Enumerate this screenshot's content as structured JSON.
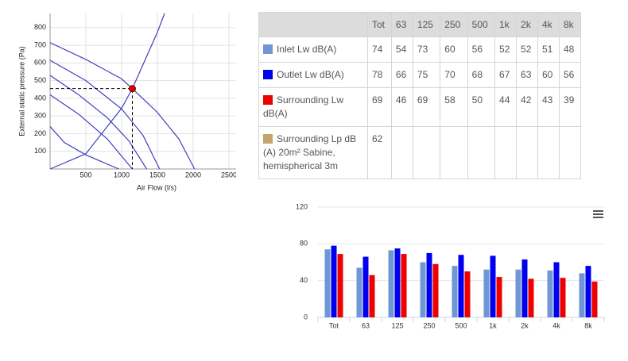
{
  "chart_data": [
    {
      "type": "line",
      "x_label": "Air Flow (l/s)",
      "y_label": "External static pressure (Pa)",
      "xlim": [
        0,
        2600
      ],
      "ylim": [
        0,
        880
      ],
      "xticks": [
        500,
        1000,
        1500,
        2000,
        2500
      ],
      "yticks": [
        100,
        200,
        300,
        400,
        500,
        600,
        700,
        800
      ],
      "grid": true,
      "series": [
        {
          "color": "#3f3fbf",
          "x": [
            0,
            500,
            1000,
            1150,
            1500,
            1800,
            2020
          ],
          "values": [
            715,
            620,
            510,
            455,
            320,
            170,
            0
          ]
        },
        {
          "color": "#3f3fbf",
          "x": [
            0,
            500,
            1000,
            1300,
            1530
          ],
          "values": [
            615,
            500,
            340,
            190,
            0
          ]
        },
        {
          "color": "#3f3fbf",
          "x": [
            0,
            400,
            800,
            1100,
            1350
          ],
          "values": [
            530,
            420,
            290,
            160,
            0
          ]
        },
        {
          "color": "#3f3fbf",
          "x": [
            0,
            400,
            800,
            1150
          ],
          "values": [
            420,
            310,
            170,
            0
          ]
        },
        {
          "color": "#3f3fbf",
          "x": [
            0,
            200,
            500,
            960
          ],
          "values": [
            240,
            150,
            80,
            0
          ]
        },
        {
          "color": "#3f3fbf",
          "x": [
            0,
            500,
            1000,
            1150,
            1500,
            1600
          ],
          "values": [
            0,
            86,
            344,
            455,
            774,
            880
          ]
        }
      ],
      "point": {
        "x": 1150,
        "y": 455,
        "color": "#cc0000"
      }
    },
    {
      "type": "bar",
      "categories": [
        "Tot",
        "63",
        "125",
        "250",
        "500",
        "1k",
        "2k",
        "4k",
        "8k"
      ],
      "ylim": [
        0,
        120
      ],
      "yticks": [
        0,
        40,
        80,
        120
      ],
      "grid": true,
      "series": [
        {
          "color": "#6f97d6",
          "values": [
            74,
            54,
            73,
            60,
            56,
            52,
            52,
            51,
            48
          ]
        },
        {
          "color": "#0000ee",
          "values": [
            78,
            66,
            75,
            70,
            68,
            67,
            63,
            60,
            56
          ]
        },
        {
          "color": "#ee0000",
          "values": [
            69,
            46,
            69,
            58,
            50,
            44,
            42,
            43,
            39
          ]
        }
      ]
    }
  ],
  "table": {
    "columns": [
      "Tot",
      "63",
      "125",
      "250",
      "500",
      "1k",
      "2k",
      "4k",
      "8k"
    ],
    "rows": [
      {
        "label": "Inlet Lw dB(A)",
        "color": "#6f97d6",
        "values": [
          74,
          54,
          73,
          60,
          56,
          52,
          52,
          51,
          48
        ]
      },
      {
        "label": "Outlet Lw dB(A)",
        "color": "#0000ee",
        "values": [
          78,
          66,
          75,
          70,
          68,
          67,
          63,
          60,
          56
        ]
      },
      {
        "label": "Surrounding Lw dB(A)",
        "color": "#ee0000",
        "values": [
          69,
          46,
          69,
          58,
          50,
          44,
          42,
          43,
          39
        ]
      },
      {
        "label": "Surrounding Lp dB (A) 20m² Sabine, hemispherical 3m",
        "color": "#c4a46c",
        "values": [
          62
        ]
      }
    ]
  }
}
